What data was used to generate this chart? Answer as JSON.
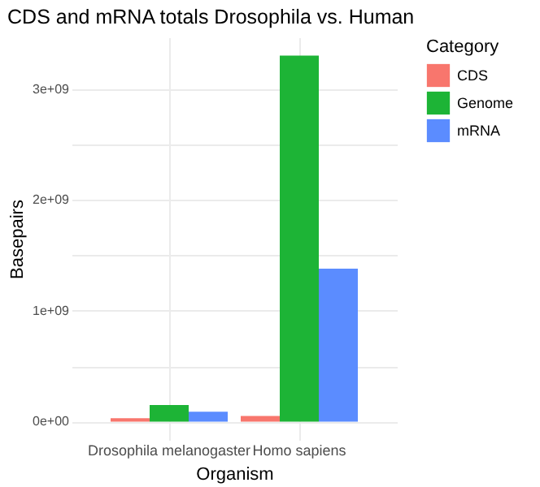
{
  "chart_data": {
    "type": "bar",
    "title": "CDS and mRNA totals Drosophila vs. Human",
    "xlabel": "Organism",
    "ylabel": "Basepairs",
    "legend_title": "Category",
    "categories": [
      "Drosophila melanogaster",
      "Homo sapiens"
    ],
    "series": [
      {
        "name": "CDS",
        "color": "#f8766d",
        "values": [
          30000000,
          50000000
        ]
      },
      {
        "name": "Genome",
        "color": "#1db436",
        "values": [
          150000000,
          3300000000
        ]
      },
      {
        "name": "mRNA",
        "color": "#5b8cff",
        "values": [
          90000000,
          1380000000
        ]
      }
    ],
    "ylim": [
      -165000000,
      3465000000
    ],
    "yticks": [
      {
        "value": 0,
        "label": "0e+00"
      },
      {
        "value": 500000000,
        "label": null
      },
      {
        "value": 1000000000,
        "label": "1e+09"
      },
      {
        "value": 1500000000,
        "label": null
      },
      {
        "value": 2000000000,
        "label": "2e+09"
      },
      {
        "value": 2500000000,
        "label": null
      },
      {
        "value": 3000000000,
        "label": "3e+09"
      }
    ],
    "grid": true,
    "legend": "right"
  }
}
